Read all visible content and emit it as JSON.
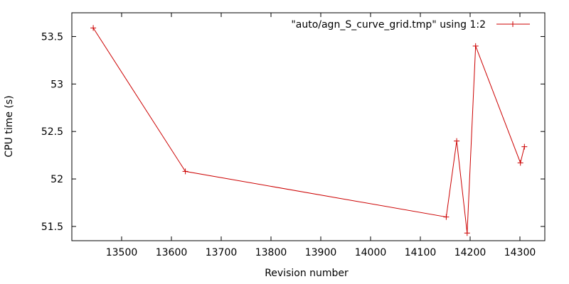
{
  "chart_data": {
    "type": "line",
    "title": "",
    "xlabel": "Revision number",
    "ylabel": "CPU time (s)",
    "xlim": [
      13400,
      14350
    ],
    "ylim": [
      51.35,
      53.75
    ],
    "x_ticks": [
      13500,
      13600,
      13700,
      13800,
      13900,
      14000,
      14100,
      14200,
      14300
    ],
    "y_ticks": [
      51.5,
      52,
      52.5,
      53,
      53.5
    ],
    "y_tick_labels": [
      "51.5",
      "52",
      "52.5",
      "53",
      "53.5"
    ],
    "grid": false,
    "legend_position": "top-right",
    "series": [
      {
        "name": "\"auto/agn_S_curve_grid.tmp\" using 1:2",
        "color": "#cc0000",
        "marker": "plus",
        "x": [
          13443,
          13628,
          14152,
          14173,
          14194,
          14211,
          14301,
          14309
        ],
        "y": [
          53.59,
          52.08,
          51.6,
          52.4,
          51.43,
          53.4,
          52.17,
          52.34
        ]
      }
    ]
  }
}
